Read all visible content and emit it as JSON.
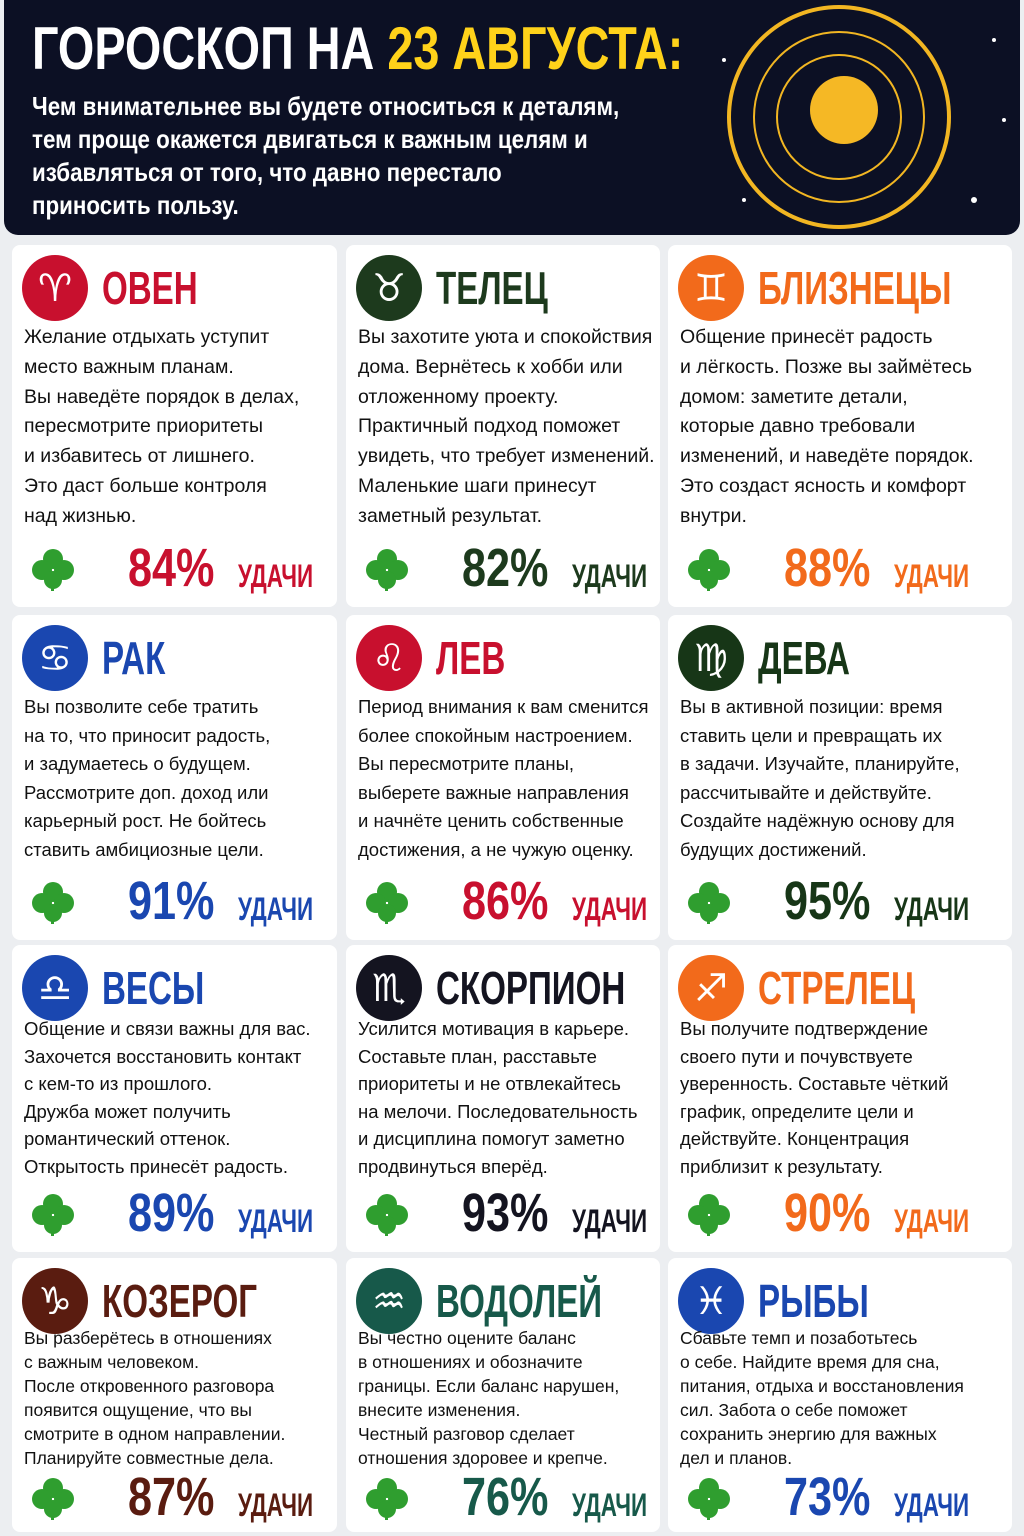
{
  "header": {
    "title": "ГОРОСКОП НА",
    "date": "23 АВГУСТА:",
    "lines": [
      "Чем внимательнее вы будете относиться к деталям,",
      "тем проще окажется двигаться к важным целям и",
      "избавляться от того, что давно перестало",
      "приносить пользу."
    ]
  },
  "cards": [
    {
      "icon": "♈",
      "name": "ОВЕН",
      "color": "#c8102e",
      "lines": [
        "Желание отдыхать уступит",
        "место важным планам.",
        "Вы наведёте порядок в делах,",
        "пересмотрите приоритеты",
        "и избавитесь от лишнего.",
        "Это даст больше контроля",
        "над жизнью."
      ],
      "percent": "84%",
      "luck": "УДАЧИ"
    },
    {
      "icon": "♉",
      "name": "ТЕЛЕЦ",
      "color": "#1d3a1d",
      "lines": [
        "Вы захотите уюта и спокойствия",
        "дома. Вернётесь к хобби или",
        "отложенному проекту.",
        "Практичный подход поможет",
        "увидеть, что требует изменений.",
        "Маленькие шаги принесут",
        "заметный результат."
      ],
      "percent": "82%",
      "luck": "УДАЧИ"
    },
    {
      "icon": "♊",
      "name": "БЛИЗНЕЦЫ",
      "color": "#f26a1b",
      "lines": [
        "Общение принесёт радость",
        "и лёгкость. Позже вы займётесь",
        "домом: заметите детали,",
        "которые давно требовали",
        "изменений, и наведёте порядок.",
        "Это создаст ясность и комфорт",
        "внутри."
      ],
      "percent": "88%",
      "luck": "УДАЧИ"
    },
    {
      "icon": "♋",
      "name": "РАК",
      "color": "#1a47b0",
      "lines": [
        "Вы позволите себе тратить",
        "на то, что приносит радость,",
        "и задумаетесь о будущем.",
        "Рассмотрите доп. доход или",
        "карьерный рост. Не бойтесь",
        "ставить амбициозные цели."
      ],
      "percent": "91%",
      "luck": "УДАЧИ"
    },
    {
      "icon": "♌",
      "name": "ЛЕВ",
      "color": "#c8102e",
      "lines": [
        "Период внимания к вам сменится",
        "более спокойным настроением.",
        "Вы пересмотрите планы,",
        "выберете важные направления",
        "и начнёте ценить собственные",
        "достижения, а не чужую оценку."
      ],
      "percent": "86%",
      "luck": "УДАЧИ"
    },
    {
      "icon": "♍",
      "name": "ДЕВА",
      "color": "#173617",
      "lines": [
        "Вы в активной позиции: время",
        "ставить цели и превращать их",
        "в задачи. Изучайте, планируйте,",
        "рассчитывайте и действуйте.",
        "Создайте надёжную основу для",
        "будущих достижений."
      ],
      "percent": "95%",
      "luck": "УДАЧИ"
    },
    {
      "icon": "♎",
      "name": "ВЕСЫ",
      "color": "#1a47b0",
      "lines": [
        "Общение и связи важны для вас.",
        "Захочется восстановить контакт",
        "с кем-то из прошлого.",
        "Дружба может получить",
        "романтический оттенок.",
        "Открытость принесёт радость."
      ],
      "percent": "89%",
      "luck": "УДАЧИ"
    },
    {
      "icon": "♏",
      "name": "СКОРПИОН",
      "color": "#141420",
      "lines": [
        "Усилится мотивация в карьере.",
        "Составьте план, расставьте",
        "приоритеты и не отвлекайтесь",
        "на мелочи. Последовательность",
        "и дисциплина помогут заметно",
        "продвинуться вперёд."
      ],
      "percent": "93%",
      "luck": "УДАЧИ"
    },
    {
      "icon": "♐",
      "name": "СТРЕЛЕЦ",
      "color": "#f26a1b",
      "lines": [
        "Вы получите подтверждение",
        "своего пути и почувствуете",
        "уверенность. Составьте чёткий",
        "график, определите цели и",
        "действуйте. Концентрация",
        "приблизит к результату."
      ],
      "percent": "90%",
      "luck": "УДАЧИ"
    },
    {
      "icon": "♑",
      "name": "КОЗЕРОГ",
      "color": "#5a1c10",
      "lines": [
        "Вы разберётесь в отношениях",
        "с важным человеком.",
        "После откровенного разговора",
        "появится ощущение, что вы",
        "смотрите в одном направлении.",
        "Планируйте совместные дела."
      ],
      "percent": "87%",
      "luck": "УДАЧИ"
    },
    {
      "icon": "♒",
      "name": "ВОДОЛЕЙ",
      "color": "#17594a",
      "lines": [
        "Вы честно оцените баланс",
        "в отношениях и обозначите",
        "границы. Если баланс нарушен,",
        "внесите изменения.",
        "Честный разговор сделает",
        "отношения здоровее и крепче."
      ],
      "percent": "76%",
      "luck": "УДАЧИ"
    },
    {
      "icon": "♓",
      "name": "РЫБЫ",
      "color": "#1a47b0",
      "lines": [
        "Сбавьте темп и позаботьтесь",
        "о себе. Найдите время для сна,",
        "питания, отдыха и восстановления",
        "сил. Забота о себе поможет",
        "сохранить энергию для важных",
        "дел и планов."
      ],
      "percent": "73%",
      "luck": "УДАЧИ"
    }
  ]
}
